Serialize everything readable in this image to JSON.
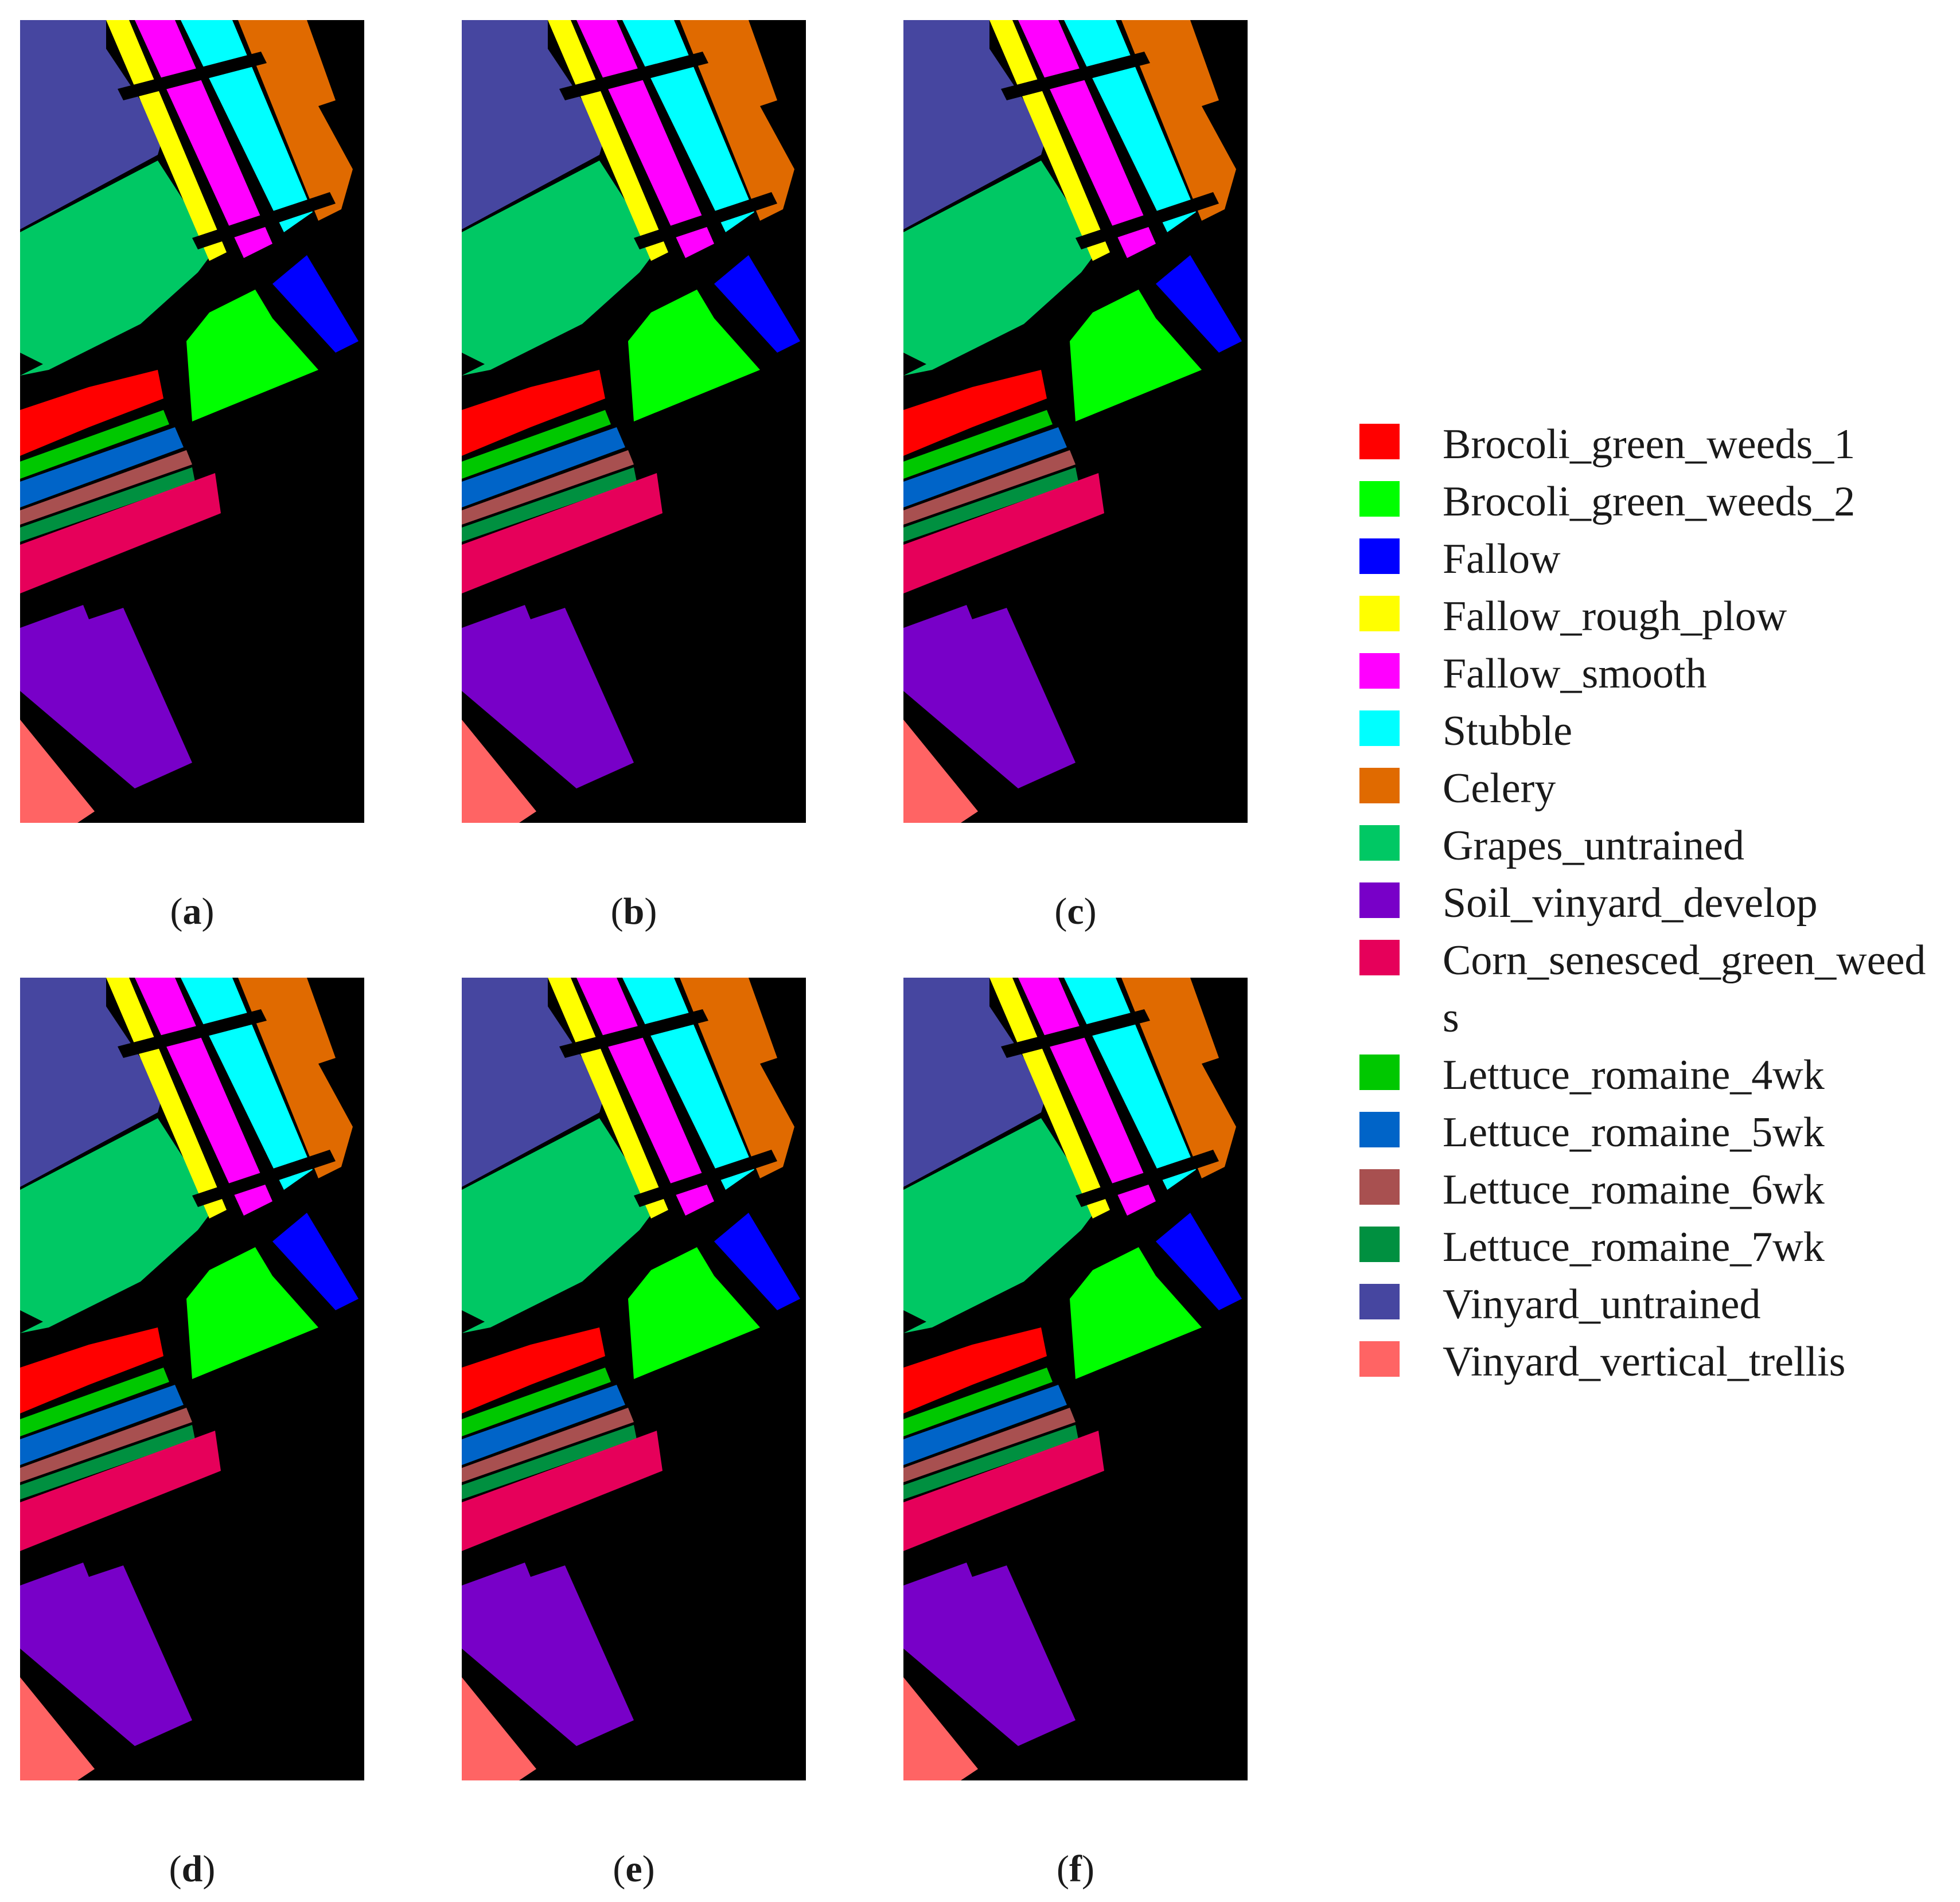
{
  "figure": {
    "panels": [
      {
        "id": "a",
        "caption": "a"
      },
      {
        "id": "b",
        "caption": "b"
      },
      {
        "id": "c",
        "caption": "c"
      },
      {
        "id": "d",
        "caption": "d"
      },
      {
        "id": "e",
        "caption": "e"
      },
      {
        "id": "f",
        "caption": "f"
      }
    ],
    "legend": [
      {
        "label": "Brocoli_green_weeds_1",
        "color": "#ff0000"
      },
      {
        "label": "Brocoli_green_weeds_2",
        "color": "#00ff00"
      },
      {
        "label": "Fallow",
        "color": "#0000ff"
      },
      {
        "label": "Fallow_rough_plow",
        "color": "#ffff00"
      },
      {
        "label": "Fallow_smooth",
        "color": "#ff00ff"
      },
      {
        "label": "Stubble",
        "color": "#00ffff"
      },
      {
        "label": "Celery",
        "color": "#e06a00"
      },
      {
        "label": "Grapes_untrained",
        "color": "#00c864"
      },
      {
        "label": "Soil_vinyard_develop",
        "color": "#7800c8"
      },
      {
        "label": "Corn_senesced_green_weeds",
        "color": "#e6005a"
      },
      {
        "label": "Lettuce_romaine_4wk",
        "color": "#00c800"
      },
      {
        "label": "Lettuce_romaine_5wk",
        "color": "#0064c8"
      },
      {
        "label": "Lettuce_romaine_6wk",
        "color": "#a85050"
      },
      {
        "label": "Lettuce_romaine_7wk",
        "color": "#009040"
      },
      {
        "label": "Vinyard_untrained",
        "color": "#4646a0"
      },
      {
        "label": "Vinyard_vertical_trellis",
        "color": "#ff6464"
      }
    ]
  }
}
